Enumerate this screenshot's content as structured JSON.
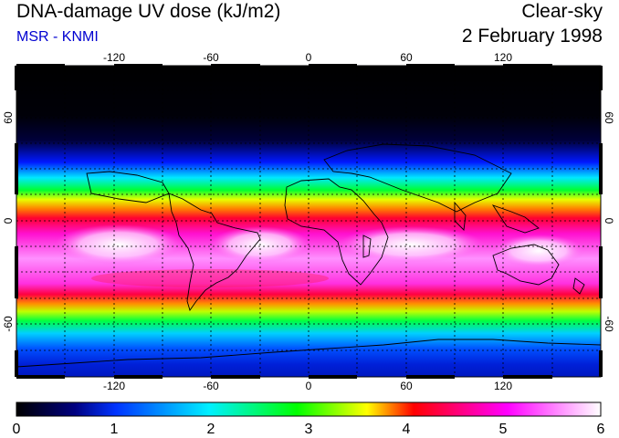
{
  "header": {
    "title": "DNA-damage UV dose (kJ/m2)",
    "source": "MSR - KNMI",
    "condition": "Clear-sky",
    "date": "2 February 1998"
  },
  "colors": {
    "source_text": "#0000d0"
  },
  "map": {
    "lon_ticks": [
      "-120",
      "-60",
      "0",
      "60",
      "120"
    ],
    "lat_ticks": [
      "60",
      "0",
      "-60"
    ],
    "lon_range": [
      -180,
      180
    ],
    "lat_range": [
      -90,
      90
    ]
  },
  "colorbar": {
    "min": 0,
    "max": 6,
    "tick_labels": [
      "0",
      "1",
      "2",
      "3",
      "4",
      "5",
      "6"
    ],
    "stops": [
      "#000000",
      "#0033ff",
      "#00f0ff",
      "#00ff00",
      "#ffff00",
      "#ff0000",
      "#ff00ff",
      "#ffffff"
    ]
  }
}
